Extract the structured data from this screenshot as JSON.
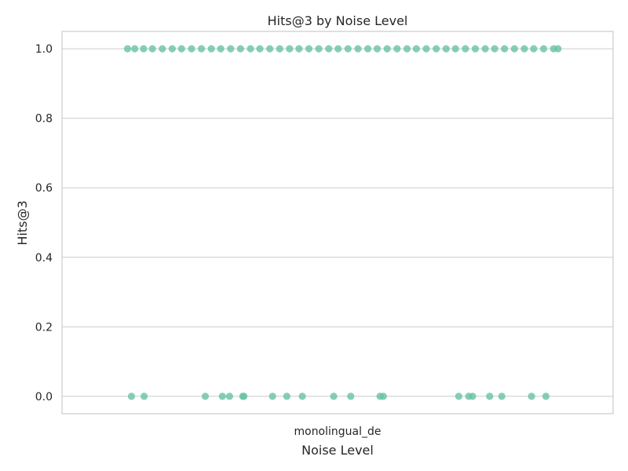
{
  "chart_data": {
    "type": "scatter",
    "title": "Hits@3 by Noise Level",
    "xlabel": "Noise Level",
    "ylabel": "Hits@3",
    "categories": [
      "monolingual_de"
    ],
    "ylim": [
      -0.05,
      1.05
    ],
    "yticks": [
      "0.0",
      "0.2",
      "0.4",
      "0.6",
      "0.8",
      "1.0"
    ],
    "grid": true,
    "legend": "none",
    "point_color": "#66c2a5",
    "series": [
      {
        "category": "monolingual_de",
        "points": [
          {
            "jitter": -0.381,
            "y": 1
          },
          {
            "jitter": -0.368,
            "y": 1
          },
          {
            "jitter": -0.352,
            "y": 1
          },
          {
            "jitter": -0.336,
            "y": 1
          },
          {
            "jitter": -0.318,
            "y": 1
          },
          {
            "jitter": -0.3,
            "y": 1
          },
          {
            "jitter": -0.283,
            "y": 1
          },
          {
            "jitter": -0.265,
            "y": 1
          },
          {
            "jitter": -0.247,
            "y": 1
          },
          {
            "jitter": -0.229,
            "y": 1
          },
          {
            "jitter": -0.212,
            "y": 1
          },
          {
            "jitter": -0.194,
            "y": 1
          },
          {
            "jitter": -0.176,
            "y": 1
          },
          {
            "jitter": -0.158,
            "y": 1
          },
          {
            "jitter": -0.141,
            "y": 1
          },
          {
            "jitter": -0.123,
            "y": 1
          },
          {
            "jitter": -0.105,
            "y": 1
          },
          {
            "jitter": -0.087,
            "y": 1
          },
          {
            "jitter": -0.07,
            "y": 1
          },
          {
            "jitter": -0.052,
            "y": 1
          },
          {
            "jitter": -0.034,
            "y": 1
          },
          {
            "jitter": -0.016,
            "y": 1
          },
          {
            "jitter": 0.001,
            "y": 1
          },
          {
            "jitter": 0.019,
            "y": 1
          },
          {
            "jitter": 0.037,
            "y": 1
          },
          {
            "jitter": 0.055,
            "y": 1
          },
          {
            "jitter": 0.072,
            "y": 1
          },
          {
            "jitter": 0.09,
            "y": 1
          },
          {
            "jitter": 0.108,
            "y": 1
          },
          {
            "jitter": 0.126,
            "y": 1
          },
          {
            "jitter": 0.143,
            "y": 1
          },
          {
            "jitter": 0.161,
            "y": 1
          },
          {
            "jitter": 0.179,
            "y": 1
          },
          {
            "jitter": 0.197,
            "y": 1
          },
          {
            "jitter": 0.214,
            "y": 1
          },
          {
            "jitter": 0.232,
            "y": 1
          },
          {
            "jitter": 0.25,
            "y": 1
          },
          {
            "jitter": 0.268,
            "y": 1
          },
          {
            "jitter": 0.285,
            "y": 1
          },
          {
            "jitter": 0.303,
            "y": 1
          },
          {
            "jitter": 0.321,
            "y": 1
          },
          {
            "jitter": 0.339,
            "y": 1
          },
          {
            "jitter": 0.356,
            "y": 1
          },
          {
            "jitter": 0.374,
            "y": 1
          },
          {
            "jitter": 0.392,
            "y": 1
          },
          {
            "jitter": 0.4,
            "y": 1
          },
          {
            "jitter": -0.374,
            "y": 0
          },
          {
            "jitter": -0.351,
            "y": 0
          },
          {
            "jitter": -0.24,
            "y": 0
          },
          {
            "jitter": -0.209,
            "y": 0
          },
          {
            "jitter": -0.196,
            "y": 0
          },
          {
            "jitter": -0.172,
            "y": 0
          },
          {
            "jitter": -0.17,
            "y": 0
          },
          {
            "jitter": -0.118,
            "y": 0
          },
          {
            "jitter": -0.092,
            "y": 0
          },
          {
            "jitter": -0.064,
            "y": 0
          },
          {
            "jitter": -0.007,
            "y": 0
          },
          {
            "jitter": 0.024,
            "y": 0
          },
          {
            "jitter": 0.077,
            "y": 0
          },
          {
            "jitter": 0.083,
            "y": 0
          },
          {
            "jitter": 0.22,
            "y": 0
          },
          {
            "jitter": 0.238,
            "y": 0
          },
          {
            "jitter": 0.245,
            "y": 0
          },
          {
            "jitter": 0.276,
            "y": 0
          },
          {
            "jitter": 0.298,
            "y": 0
          },
          {
            "jitter": 0.352,
            "y": 0
          },
          {
            "jitter": 0.378,
            "y": 0
          }
        ]
      }
    ]
  }
}
